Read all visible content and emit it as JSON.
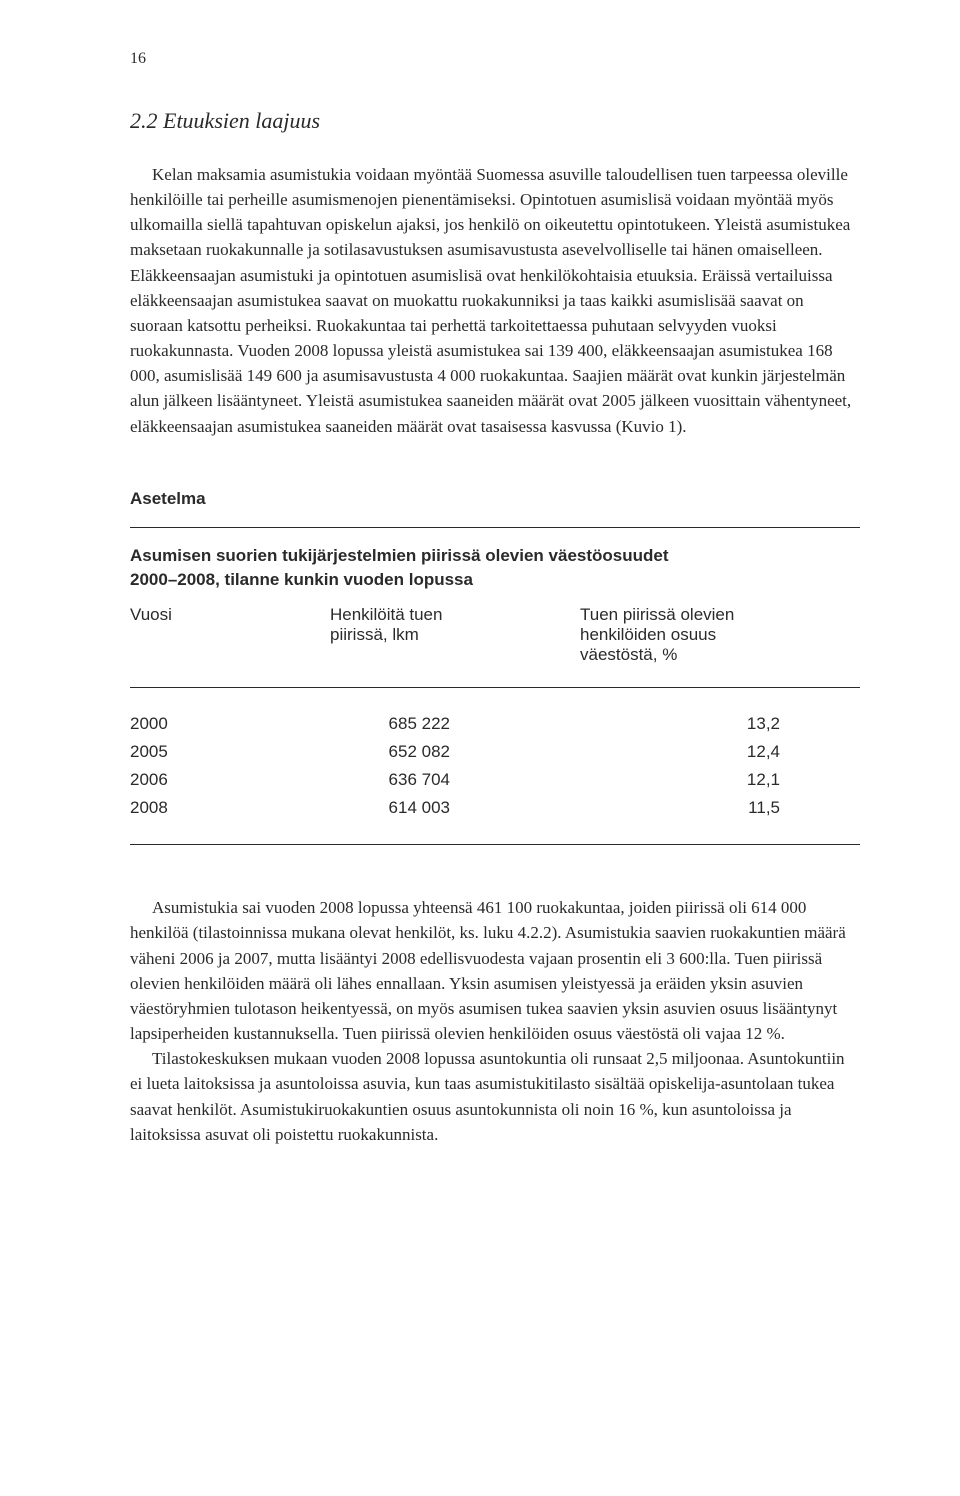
{
  "page_number": "16",
  "heading": "2.2  Etuuksien laajuus",
  "body": "Kelan maksamia asumistukia voidaan myöntää Suomessa asuville taloudellisen tuen tarpeessa oleville henkilöille tai perheille asumismenojen pienentämiseksi. Opintotuen asumislisä voidaan myöntää myös ulkomailla siellä tapahtuvan opiskelun ajaksi, jos henkilö on oikeutettu opintotukeen. Yleistä asumistukea maksetaan ruokakunnalle ja sotilasavustuksen asumisavustusta asevelvolliselle tai hänen omaiselleen. Eläkkeensaajan asumistuki ja opintotuen asumislisä ovat henkilökohtaisia etuuksia. Eräissä vertailuissa eläkkeensaajan asumistukea saavat on muokattu ruokakunniksi ja taas kaikki asumislisää saavat on suoraan katsottu perheiksi. Ruokakuntaa tai perhettä tarkoitettaessa puhutaan selvyyden vuoksi ruokakunnasta. Vuoden 2008 lopussa yleistä asumistukea sai 139 400, eläkkeensaajan asumistukea 168 000, asumislisää 149 600 ja asumisavustusta 4 000 ruokakuntaa. Saajien määrät ovat kunkin järjestelmän alun jälkeen lisääntyneet. Yleistä asumistukea saaneiden määrät ovat 2005 jälkeen vuosittain vähentyneet, eläkkeensaajan asumistukea saaneiden määrät ovat tasaisessa kasvussa (Kuvio 1).",
  "asetelma_label": "Asetelma",
  "table": {
    "title_line1": "Asumisen suorien tukijärjestelmien piirissä olevien väestöosuudet",
    "title_line2": "2000–2008, tilanne kunkin vuoden lopussa",
    "col1_header": "Vuosi",
    "col2_header_l1": "Henkilöitä tuen",
    "col2_header_l2": "piirissä, lkm",
    "col3_header_l1": "Tuen piirissä olevien",
    "col3_header_l2": "henkilöiden osuus",
    "col3_header_l3": "väestöstä, %",
    "rows": [
      {
        "year": "2000",
        "count": "685 222",
        "pct": "13,2"
      },
      {
        "year": "2005",
        "count": "652 082",
        "pct": "12,4"
      },
      {
        "year": "2006",
        "count": "636 704",
        "pct": "12,1"
      },
      {
        "year": "2008",
        "count": "614 003",
        "pct": "11,5"
      }
    ]
  },
  "closing_p1": "Asumistukia sai vuoden 2008 lopussa yhteensä 461 100 ruokakuntaa, joiden piirissä oli 614 000 henkilöä (tilastoinnissa mukana olevat henkilöt, ks. luku 4.2.2). Asumistukia saavien ruokakuntien määrä väheni 2006 ja 2007, mutta lisääntyi 2008 edellisvuodesta vajaan prosentin eli 3 600:lla. Tuen piirissä olevien henkilöiden määrä oli lähes ennallaan. Yksin asumisen yleistyessä ja eräiden yksin asuvien väestöryhmien tulotason heikentyessä, on myös asumisen tukea saavien yksin asuvien osuus lisääntynyt lapsiperheiden kustannuksella. Tuen piirissä olevien henkilöiden osuus väestöstä oli vajaa 12 %.",
  "closing_p2": "Tilastokeskuksen mukaan vuoden 2008 lopussa asuntokuntia oli runsaat 2,5 miljoonaa. Asuntokuntiin ei lueta laitoksissa ja asuntoloissa asuvia, kun taas asumistukitilasto sisältää opiskelija-asuntolaan tukea saavat henkilöt. Asumistukiruokakuntien osuus asuntokunnista oli noin 16 %, kun asuntoloissa ja laitoksissa asuvat oli poistettu ruokakunnista."
}
